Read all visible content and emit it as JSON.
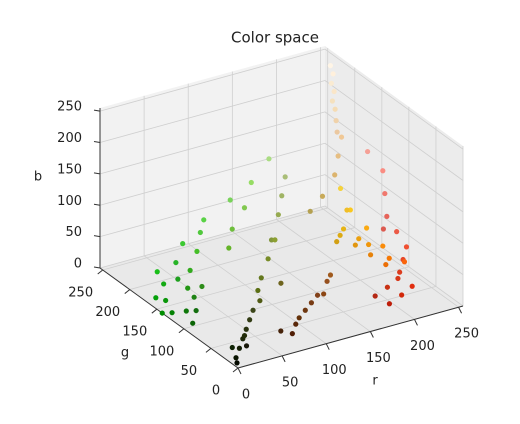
{
  "chart_data": {
    "type": "scatter3d",
    "title": "Color space",
    "xlabel": "r",
    "ylabel": "g",
    "zlabel": "b",
    "xlim": [
      0,
      255
    ],
    "ylim": [
      0,
      255
    ],
    "zlim": [
      0,
      255
    ],
    "xticks": [
      0,
      50,
      100,
      150,
      200,
      250
    ],
    "yticks": [
      0,
      50,
      100,
      150,
      200,
      250
    ],
    "zticks": [
      0,
      50,
      100,
      150,
      200,
      250
    ],
    "grid": true,
    "series": [
      {
        "x": [
          10,
          20,
          5,
          30,
          15,
          40,
          0,
          25,
          10,
          50,
          60,
          20,
          35,
          5,
          45,
          70,
          80,
          90,
          100,
          30,
          20,
          10,
          30,
          40,
          15,
          25,
          50,
          5,
          35,
          60,
          100,
          120,
          90,
          130,
          110,
          140,
          150,
          160,
          80,
          170,
          100,
          120,
          90,
          140,
          110,
          130,
          150,
          80,
          160,
          70,
          200,
          220,
          210,
          230,
          190,
          240,
          180,
          215,
          225,
          235,
          240,
          230,
          250,
          245,
          235,
          220,
          250,
          240,
          230,
          250,
          210,
          245,
          235,
          225,
          250,
          240,
          245,
          250,
          255,
          230,
          235,
          220,
          250,
          240,
          200,
          255,
          180,
          245,
          240,
          230,
          250,
          220,
          245,
          130,
          150,
          120,
          170,
          110
        ],
        "y": [
          150,
          170,
          130,
          160,
          120,
          180,
          140,
          190,
          100,
          170,
          200,
          110,
          150,
          160,
          140,
          190,
          200,
          210,
          180,
          130,
          30,
          20,
          40,
          50,
          35,
          25,
          60,
          10,
          45,
          70,
          120,
          140,
          110,
          150,
          100,
          160,
          170,
          180,
          90,
          190,
          50,
          60,
          40,
          70,
          55,
          65,
          80,
          30,
          90,
          35,
          50,
          60,
          40,
          70,
          30,
          80,
          40,
          55,
          45,
          90,
          150,
          180,
          200,
          120,
          160,
          170,
          140,
          190,
          130,
          100,
          160,
          210,
          110,
          150,
          170,
          200,
          220,
          230,
          240,
          190,
          200,
          180,
          235,
          210,
          170,
          245,
          160,
          225,
          120,
          100,
          140,
          90,
          160,
          200,
          220,
          210,
          220,
          190
        ],
        "z": [
          10,
          20,
          5,
          30,
          10,
          40,
          0,
          25,
          5,
          30,
          50,
          15,
          20,
          10,
          25,
          40,
          60,
          70,
          40,
          20,
          5,
          0,
          10,
          15,
          5,
          10,
          20,
          0,
          10,
          25,
          30,
          40,
          20,
          60,
          30,
          50,
          80,
          100,
          20,
          120,
          10,
          20,
          10,
          20,
          15,
          25,
          30,
          5,
          30,
          10,
          20,
          30,
          10,
          40,
          10,
          50,
          20,
          25,
          15,
          70,
          10,
          20,
          30,
          5,
          15,
          20,
          10,
          40,
          10,
          10,
          20,
          60,
          5,
          15,
          20,
          150,
          180,
          200,
          220,
          130,
          160,
          110,
          210,
          170,
          90,
          230,
          80,
          190,
          110,
          90,
          130,
          80,
          150,
          80,
          100,
          90,
          130,
          60
        ]
      }
    ]
  }
}
